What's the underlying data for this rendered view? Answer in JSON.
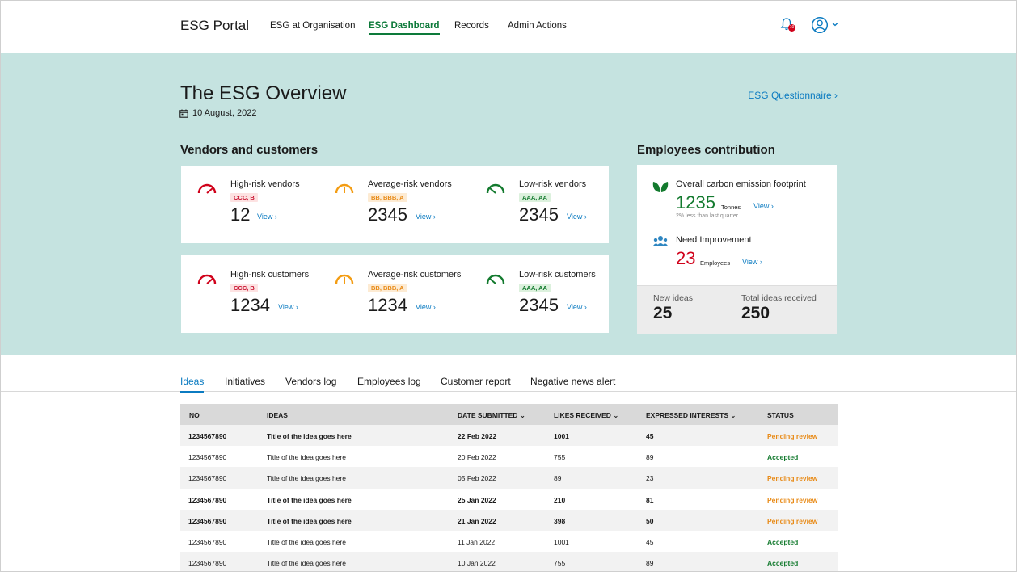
{
  "header": {
    "brand": "ESG Portal",
    "nav": [
      {
        "label": "ESG at Organisation",
        "active": false
      },
      {
        "label": "ESG Dashboard",
        "active": true
      },
      {
        "label": "Records",
        "active": false
      },
      {
        "label": "Admin Actions",
        "active": false
      }
    ],
    "notification_badge": "10",
    "icons": [
      "bell-icon",
      "user-icon",
      "chevron-down-icon"
    ]
  },
  "overview": {
    "title": "The ESG Overview",
    "date": "10 August, 2022",
    "questionnaire_link": "ESG Questionnaire ›"
  },
  "vendors_customers": {
    "title": "Vendors and customers",
    "vendors": [
      {
        "label": "High-risk vendors",
        "tag": "CCC, B",
        "level": "red",
        "value": "12",
        "view": "View ›"
      },
      {
        "label": "Average-risk vendors",
        "tag": "BB, BBB, A",
        "level": "orange",
        "value": "2345",
        "view": "View ›"
      },
      {
        "label": "Low-risk vendors",
        "tag": "AAA, AA",
        "level": "green",
        "value": "2345",
        "view": "View ›"
      }
    ],
    "customers": [
      {
        "label": "High-risk customers",
        "tag": "CCC, B",
        "level": "red",
        "value": "1234",
        "view": "View ›"
      },
      {
        "label": "Average-risk customers",
        "tag": "BB, BBB, A",
        "level": "orange",
        "value": "1234",
        "view": "View ›"
      },
      {
        "label": "Low-risk customers",
        "tag": "AAA, AA",
        "level": "green",
        "value": "2345",
        "view": "View ›"
      }
    ]
  },
  "employees": {
    "title": "Employees contribution",
    "carbon": {
      "label": "Overall carbon emission footprint",
      "value": "1235",
      "unit": "Tonnes",
      "sub": "2% less than last quarter",
      "view": "View ›"
    },
    "improvement": {
      "label": "Need Improvement",
      "value": "23",
      "unit": "Employees",
      "view": "View ›"
    },
    "new_ideas": {
      "label": "New ideas",
      "value": "25"
    },
    "total_ideas": {
      "label": "Total ideas received",
      "value": "250"
    }
  },
  "tabs": [
    "Ideas",
    "Initiatives",
    "Vendors log",
    "Employees log",
    "Customer report",
    "Negative news alert"
  ],
  "table": {
    "headers": [
      "NO",
      "IDEAS",
      "DATE SUBMITTED",
      "LIKES RECEIVED",
      "EXPRESSED INTERESTS",
      "STATUS"
    ],
    "rows": [
      {
        "no": "1234567890",
        "idea": "Title of the idea goes here",
        "date": "22 Feb 2022",
        "likes": "1001",
        "interests": "45",
        "status": "Pending review",
        "bold": true
      },
      {
        "no": "1234567890",
        "idea": "Title of the idea goes here",
        "date": "20 Feb 2022",
        "likes": "755",
        "interests": "89",
        "status": "Accepted",
        "bold": false
      },
      {
        "no": "1234567890",
        "idea": "Title of the idea goes here",
        "date": "05 Feb 2022",
        "likes": "89",
        "interests": "23",
        "status": "Pending review",
        "bold": false
      },
      {
        "no": "1234567890",
        "idea": "Title of the idea goes here",
        "date": "25 Jan 2022",
        "likes": "210",
        "interests": "81",
        "status": "Pending review",
        "bold": true
      },
      {
        "no": "1234567890",
        "idea": "Title of the idea goes here",
        "date": "21 Jan 2022",
        "likes": "398",
        "interests": "50",
        "status": "Pending review",
        "bold": true
      },
      {
        "no": "1234567890",
        "idea": "Title of the idea goes here",
        "date": "11 Jan 2022",
        "likes": "1001",
        "interests": "45",
        "status": "Accepted",
        "bold": false
      },
      {
        "no": "1234567890",
        "idea": "Title of the idea goes here",
        "date": "10 Jan 2022",
        "likes": "755",
        "interests": "89",
        "status": "Accepted",
        "bold": false
      }
    ]
  },
  "colors": {
    "accent_green": "#0d7a3a",
    "link_blue": "#0b7bc1",
    "hero_bg": "#c5e3e0",
    "risk_red": "#d0021b",
    "risk_orange": "#f39c12",
    "risk_green": "#137a2e"
  }
}
